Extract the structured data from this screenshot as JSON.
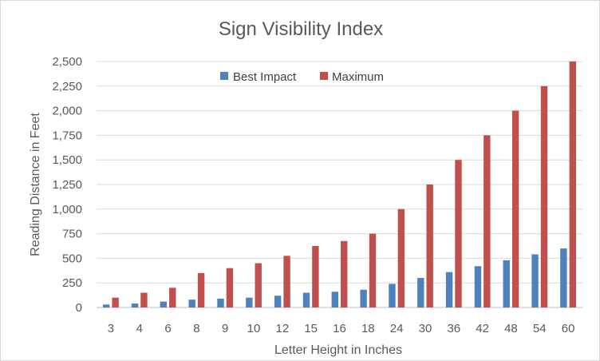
{
  "chart_data": {
    "type": "bar",
    "title": "Sign Visibility Index",
    "xlabel": "Letter Height in Inches",
    "ylabel": "Reading Distance in Feet",
    "ylim": [
      0,
      2500
    ],
    "y_ticks": [
      "0",
      "250",
      "500",
      "750",
      "1,000",
      "1,250",
      "1,500",
      "1,750",
      "2,000",
      "2,250",
      "2,500"
    ],
    "categories": [
      "3",
      "4",
      "6",
      "8",
      "9",
      "10",
      "12",
      "15",
      "16",
      "18",
      "24",
      "30",
      "36",
      "42",
      "48",
      "54",
      "60"
    ],
    "series": [
      {
        "name": "Best Impact",
        "color": "#4f81bd",
        "values": [
          30,
          40,
          60,
          80,
          90,
          100,
          120,
          150,
          160,
          180,
          240,
          300,
          360,
          420,
          480,
          540,
          600
        ]
      },
      {
        "name": "Maximum",
        "color": "#c0504d",
        "values": [
          100,
          150,
          200,
          350,
          400,
          450,
          525,
          625,
          675,
          750,
          1000,
          1250,
          1500,
          1750,
          2000,
          2250,
          2500
        ]
      }
    ],
    "legend_position": "top",
    "grid": true
  }
}
